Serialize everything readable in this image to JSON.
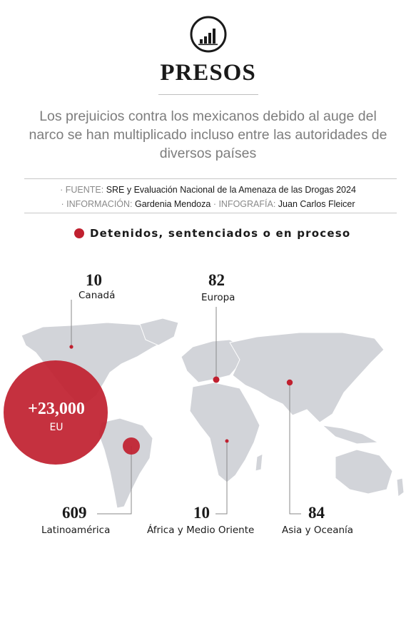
{
  "header": {
    "icon": "bar-chart-icon",
    "title": "PRESOS",
    "subtitle": "Los prejuicios contra los mexicanos debido al auge del narco se han multiplicado incluso entre las autoridades de diversos países",
    "source_key": "· FUENTE:",
    "source_val": "SRE y Evaluación Nacional de la Amenaza de las Drogas 2024",
    "info_key": "· INFORMACIÓN:",
    "info_val": "Gardenia Mendoza",
    "graphic_key": "· INFOGRAFÍA:",
    "graphic_val": "Juan Carlos Fleicer"
  },
  "legend": {
    "label": "Detenidos, sentenciados o en proceso",
    "color": "#c0202f"
  },
  "colors": {
    "land": "#d2d4d9",
    "accent": "#c0202f",
    "leader": "#8a8a8a"
  },
  "regions": {
    "canada": {
      "value": "10",
      "label": "Canadá"
    },
    "europa": {
      "value": "82",
      "label": "Europa"
    },
    "eu": {
      "value": "+23,000",
      "label": "EU"
    },
    "latam": {
      "value": "609",
      "label": "Latinoamérica"
    },
    "africa": {
      "value": "10",
      "label": "África y Medio Oriente"
    },
    "asia": {
      "value": "84",
      "label": "Asia y Oceanía"
    }
  }
}
